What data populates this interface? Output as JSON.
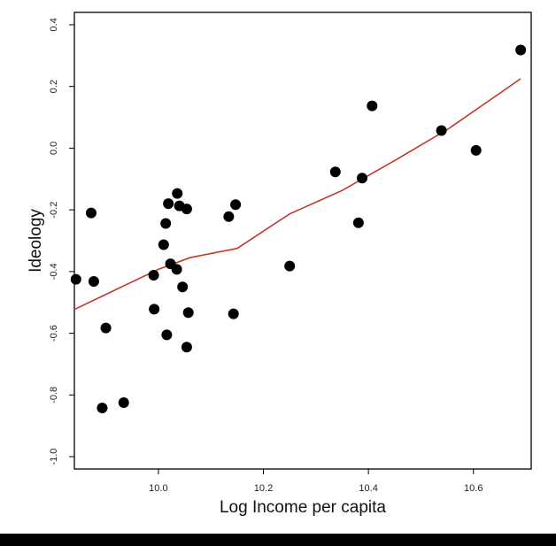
{
  "chart_data": {
    "type": "scatter",
    "title": "",
    "xlabel": "Log Income per capita",
    "ylabel": "Ideology",
    "xlim": [
      9.84,
      10.71
    ],
    "ylim": [
      -1.04,
      0.44
    ],
    "x_ticks": [
      10.0,
      10.2,
      10.4,
      10.6
    ],
    "x_tick_labels": [
      "10.0",
      "10.2",
      "10.4",
      "10.6"
    ],
    "y_ticks": [
      -1.0,
      -0.8,
      -0.6,
      -0.4,
      -0.2,
      0.0,
      0.2,
      0.4
    ],
    "y_tick_labels": [
      "-1.0",
      "-0.8",
      "-0.6",
      "-0.4",
      "-0.2",
      "0.0",
      "0.2",
      "0.4"
    ],
    "grid": false,
    "legend": "none",
    "point_color": "#000000",
    "line_color": "#c0392b",
    "points": [
      {
        "x": 9.843,
        "y": -0.425
      },
      {
        "x": 9.872,
        "y": -0.21
      },
      {
        "x": 9.877,
        "y": -0.432
      },
      {
        "x": 9.893,
        "y": -0.842
      },
      {
        "x": 9.9,
        "y": -0.583
      },
      {
        "x": 9.934,
        "y": -0.825
      },
      {
        "x": 9.991,
        "y": -0.412
      },
      {
        "x": 9.992,
        "y": -0.522
      },
      {
        "x": 10.01,
        "y": -0.313
      },
      {
        "x": 10.014,
        "y": -0.244
      },
      {
        "x": 10.016,
        "y": -0.605
      },
      {
        "x": 10.019,
        "y": -0.18
      },
      {
        "x": 10.023,
        "y": -0.375
      },
      {
        "x": 10.035,
        "y": -0.393
      },
      {
        "x": 10.036,
        "y": -0.147
      },
      {
        "x": 10.04,
        "y": -0.187
      },
      {
        "x": 10.046,
        "y": -0.45
      },
      {
        "x": 10.054,
        "y": -0.645
      },
      {
        "x": 10.054,
        "y": -0.197
      },
      {
        "x": 10.057,
        "y": -0.533
      },
      {
        "x": 10.134,
        "y": -0.222
      },
      {
        "x": 10.143,
        "y": -0.537
      },
      {
        "x": 10.147,
        "y": -0.183
      },
      {
        "x": 10.25,
        "y": -0.382
      },
      {
        "x": 10.337,
        "y": -0.077
      },
      {
        "x": 10.381,
        "y": -0.242
      },
      {
        "x": 10.388,
        "y": -0.097
      },
      {
        "x": 10.407,
        "y": 0.137
      },
      {
        "x": 10.539,
        "y": 0.057
      },
      {
        "x": 10.605,
        "y": -0.007
      },
      {
        "x": 10.69,
        "y": 0.318
      }
    ],
    "fit_line": [
      {
        "x": 9.84,
        "y": -0.523
      },
      {
        "x": 10.0,
        "y": -0.393
      },
      {
        "x": 10.06,
        "y": -0.355
      },
      {
        "x": 10.15,
        "y": -0.325
      },
      {
        "x": 10.25,
        "y": -0.213
      },
      {
        "x": 10.35,
        "y": -0.137
      },
      {
        "x": 10.45,
        "y": -0.04
      },
      {
        "x": 10.55,
        "y": 0.06
      },
      {
        "x": 10.69,
        "y": 0.225
      }
    ]
  }
}
